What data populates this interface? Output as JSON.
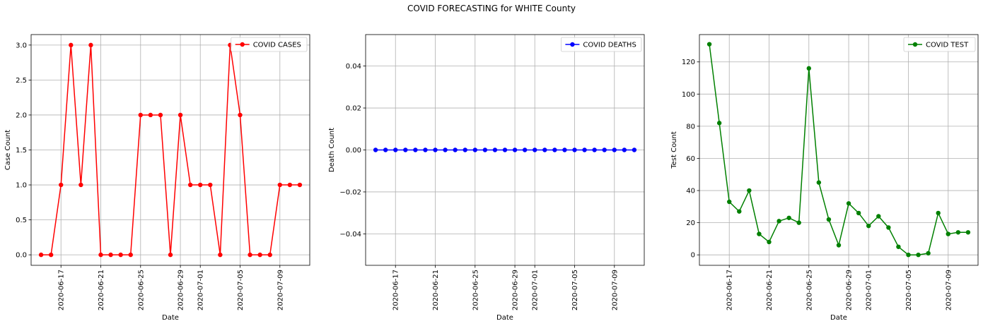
{
  "figure": {
    "title": "COVID FORECASTING for WHITE County"
  },
  "chart_data": [
    {
      "type": "line",
      "title": "",
      "xlabel": "Date",
      "ylabel": "Case Count",
      "color": "#ff0000",
      "legend": {
        "label": "COVID CASES",
        "position": "top-right"
      },
      "grid": true,
      "ylim": [
        -0.15,
        3.15
      ],
      "yticks": [
        0.0,
        0.5,
        1.0,
        1.5,
        2.0,
        2.5,
        3.0
      ],
      "ytick_labels": [
        "0.0",
        "0.5",
        "1.0",
        "1.5",
        "2.0",
        "2.5",
        "3.0"
      ],
      "xlim": [
        "2020-06-14",
        "2020-07-12"
      ],
      "xticks": [
        "2020-06-17",
        "2020-06-21",
        "2020-06-25",
        "2020-06-29",
        "2020-07-01",
        "2020-07-05",
        "2020-07-09"
      ],
      "x": [
        "2020-06-15",
        "2020-06-16",
        "2020-06-17",
        "2020-06-18",
        "2020-06-19",
        "2020-06-20",
        "2020-06-21",
        "2020-06-22",
        "2020-06-23",
        "2020-06-24",
        "2020-06-25",
        "2020-06-26",
        "2020-06-27",
        "2020-06-28",
        "2020-06-29",
        "2020-06-30",
        "2020-07-01",
        "2020-07-02",
        "2020-07-03",
        "2020-07-04",
        "2020-07-05",
        "2020-07-06",
        "2020-07-07",
        "2020-07-08",
        "2020-07-09",
        "2020-07-10",
        "2020-07-11"
      ],
      "values": [
        0,
        0,
        1,
        3,
        1,
        3,
        0,
        0,
        0,
        0,
        2,
        2,
        2,
        0,
        2,
        1,
        1,
        1,
        0,
        3,
        2,
        0,
        0,
        0,
        1,
        1,
        1
      ]
    },
    {
      "type": "line",
      "title": "",
      "xlabel": "Date",
      "ylabel": "Death Count",
      "color": "#0000ff",
      "legend": {
        "label": "COVID DEATHS",
        "position": "top-right"
      },
      "grid": true,
      "ylim": [
        -0.055,
        0.055
      ],
      "yticks": [
        -0.04,
        -0.02,
        0.0,
        0.02,
        0.04
      ],
      "ytick_labels": [
        "−0.04",
        "−0.02",
        "0.00",
        "0.02",
        "0.04"
      ],
      "xlim": [
        "2020-06-14",
        "2020-07-12"
      ],
      "xticks": [
        "2020-06-17",
        "2020-06-21",
        "2020-06-25",
        "2020-06-29",
        "2020-07-01",
        "2020-07-05",
        "2020-07-09"
      ],
      "x": [
        "2020-06-15",
        "2020-06-16",
        "2020-06-17",
        "2020-06-18",
        "2020-06-19",
        "2020-06-20",
        "2020-06-21",
        "2020-06-22",
        "2020-06-23",
        "2020-06-24",
        "2020-06-25",
        "2020-06-26",
        "2020-06-27",
        "2020-06-28",
        "2020-06-29",
        "2020-06-30",
        "2020-07-01",
        "2020-07-02",
        "2020-07-03",
        "2020-07-04",
        "2020-07-05",
        "2020-07-06",
        "2020-07-07",
        "2020-07-08",
        "2020-07-09",
        "2020-07-10",
        "2020-07-11"
      ],
      "values": [
        0,
        0,
        0,
        0,
        0,
        0,
        0,
        0,
        0,
        0,
        0,
        0,
        0,
        0,
        0,
        0,
        0,
        0,
        0,
        0,
        0,
        0,
        0,
        0,
        0,
        0,
        0
      ]
    },
    {
      "type": "line",
      "title": "",
      "xlabel": "Date",
      "ylabel": "Test Count",
      "color": "#008000",
      "legend": {
        "label": "COVID TEST",
        "position": "top-right"
      },
      "grid": true,
      "ylim": [
        -6.5,
        137
      ],
      "yticks": [
        0,
        20,
        40,
        60,
        80,
        100,
        120
      ],
      "ytick_labels": [
        "0",
        "20",
        "40",
        "60",
        "80",
        "100",
        "120"
      ],
      "xlim": [
        "2020-06-14",
        "2020-07-12"
      ],
      "xticks": [
        "2020-06-17",
        "2020-06-21",
        "2020-06-25",
        "2020-06-29",
        "2020-07-01",
        "2020-07-05",
        "2020-07-09"
      ],
      "x": [
        "2020-06-15",
        "2020-06-16",
        "2020-06-17",
        "2020-06-18",
        "2020-06-19",
        "2020-06-20",
        "2020-06-21",
        "2020-06-22",
        "2020-06-23",
        "2020-06-24",
        "2020-06-25",
        "2020-06-26",
        "2020-06-27",
        "2020-06-28",
        "2020-06-29",
        "2020-06-30",
        "2020-07-01",
        "2020-07-02",
        "2020-07-03",
        "2020-07-04",
        "2020-07-05",
        "2020-07-06",
        "2020-07-07",
        "2020-07-08",
        "2020-07-09",
        "2020-07-10",
        "2020-07-11"
      ],
      "values": [
        131,
        82,
        33,
        27,
        40,
        13,
        8,
        21,
        23,
        20,
        116,
        45,
        22,
        6,
        32,
        26,
        18,
        24,
        17,
        5,
        0,
        0,
        1,
        26,
        13,
        14,
        14
      ]
    }
  ]
}
